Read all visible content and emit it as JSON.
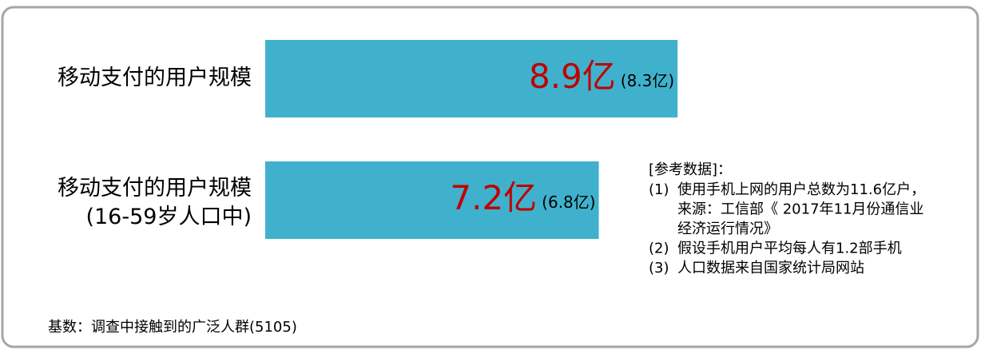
{
  "chart_data": {
    "type": "bar",
    "orientation": "horizontal",
    "categories": [
      "移动支付的用户规模",
      "移动支付的用户规模"
    ],
    "category_sublabels": [
      null,
      "(16-59岁人口中)"
    ],
    "series": [
      {
        "name": null,
        "color": "#40b1cc",
        "values": [
          8.9,
          7.2
        ],
        "value_labels": [
          "8.9亿",
          "7.2亿"
        ],
        "label_color": "#c00000"
      },
      {
        "name": null,
        "values": [
          8.3,
          6.8
        ],
        "value_labels": [
          "(8.3亿)",
          "(6.8亿)"
        ]
      }
    ]
  },
  "notes": {
    "title": "[参考数据]：",
    "items": [
      {
        "number": "(1)",
        "lines": [
          "使用手机上网的用户总数为11.6亿户，",
          "来源：工信部《 2017年11月份通信业",
          "经济运行情况》"
        ]
      },
      {
        "number": "(2)",
        "lines": [
          "假设手机用户平均每人有1.2部手机"
        ]
      },
      {
        "number": "(3)",
        "lines": [
          "人口数据来自国家统计局网站"
        ]
      }
    ]
  },
  "footer": "基数：调查中接触到的广泛人群(5105)"
}
